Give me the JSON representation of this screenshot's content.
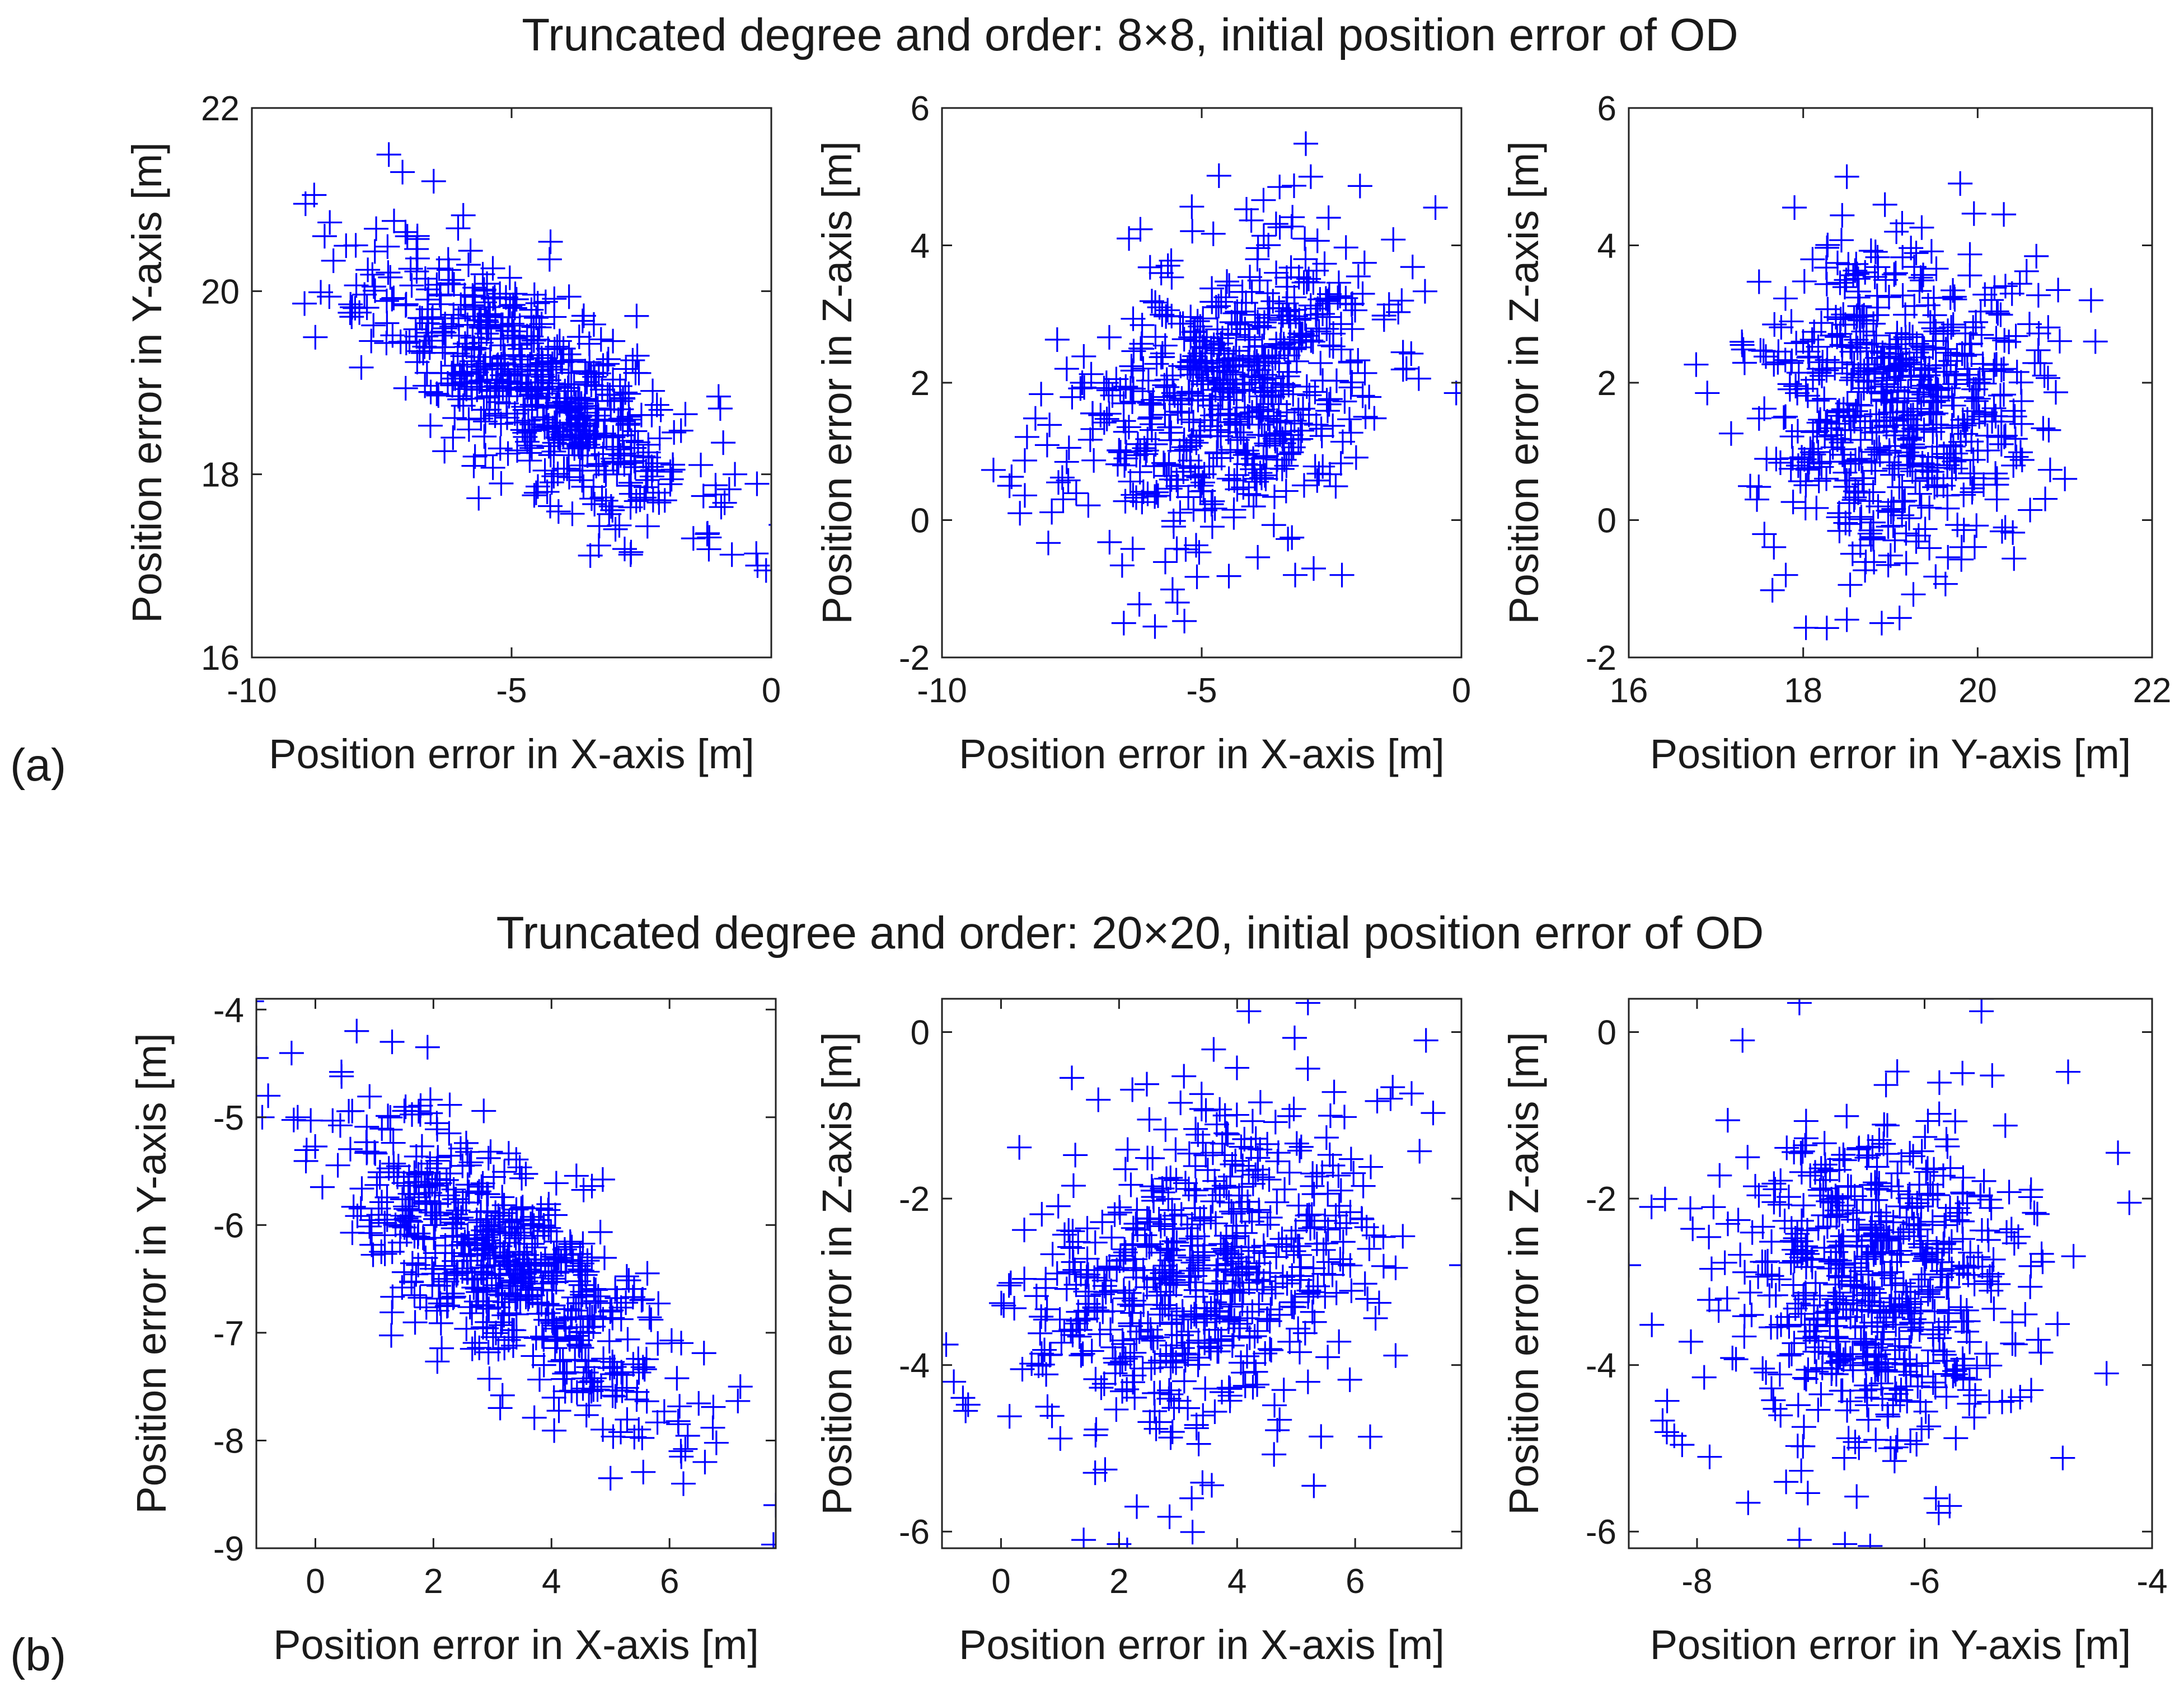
{
  "rows": [
    {
      "title": "Truncated degree and order: 8×8, initial position error of OD",
      "panel_label": "(a)"
    },
    {
      "title": "Truncated degree and order: 20×20, initial position error of OD",
      "panel_label": "(b)"
    }
  ],
  "colors": {
    "marker": "#0000ff",
    "axis": "#222222",
    "text": "#1a1a1a"
  },
  "chart_data": [
    {
      "id": "a1",
      "type": "scatter",
      "marker": "plus",
      "xlabel": "Position error in X-axis [m]",
      "ylabel": "Position error in Y-axis [m]",
      "xlim": [
        -10,
        0
      ],
      "ylim": [
        16,
        22
      ],
      "xticks": [
        -10,
        -5,
        0
      ],
      "yticks": [
        16,
        18,
        20,
        22
      ],
      "cloud": {
        "n": 600,
        "cx": -4.6,
        "cy": 19.0,
        "sx": 1.55,
        "sy": 0.75,
        "rho": -0.7,
        "seed": 11
      },
      "points": [
        [
          -8.8,
          21.05
        ],
        [
          -8.6,
          20.6
        ],
        [
          -8.5,
          20.75
        ],
        [
          -7.1,
          21.3
        ],
        [
          -0.1,
          16.95
        ],
        [
          -0.7,
          18.0
        ],
        [
          -1.5,
          17.3
        ],
        [
          -2.7,
          17.15
        ],
        [
          -3.0,
          17.4
        ],
        [
          -8.0,
          20.5
        ],
        [
          -6.5,
          21.2
        ],
        [
          -5.2,
          17.9
        ]
      ]
    },
    {
      "id": "a2",
      "type": "scatter",
      "marker": "plus",
      "xlabel": "Position error in X-axis [m]",
      "ylabel": "Position error in Z-axis [m]",
      "xlim": [
        -10,
        0
      ],
      "ylim": [
        -2,
        6
      ],
      "xticks": [
        -10,
        -5,
        0
      ],
      "yticks": [
        -2,
        0,
        2,
        4,
        6
      ],
      "cloud": {
        "n": 600,
        "cx": -4.6,
        "cy": 1.8,
        "sx": 1.5,
        "sy": 1.1,
        "rho": 0.3,
        "seed": 23
      },
      "points": [
        [
          -0.5,
          4.55
        ],
        [
          -0.1,
          1.85
        ],
        [
          -6.5,
          -1.5
        ],
        [
          -5.9,
          -1.55
        ],
        [
          -3.5,
          4.85
        ],
        [
          -2.9,
          5.0
        ],
        [
          -8.7,
          0.5
        ],
        [
          -8.5,
          0.1
        ],
        [
          -6.4,
          4.1
        ],
        [
          -7.3,
          2.0
        ],
        [
          -2.3,
          -0.8
        ],
        [
          -3.2,
          -0.8
        ]
      ]
    },
    {
      "id": "a3",
      "type": "scatter",
      "marker": "plus",
      "xlabel": "Position error in Y-axis [m]",
      "ylabel": "Position error in Z-axis [m]",
      "xlim": [
        16,
        22
      ],
      "ylim": [
        -2,
        6
      ],
      "xticks": [
        16,
        18,
        20,
        22
      ],
      "yticks": [
        -2,
        0,
        2,
        4,
        6
      ],
      "cloud": {
        "n": 600,
        "cx": 19.1,
        "cy": 1.8,
        "sx": 0.75,
        "sy": 1.15,
        "rho": 0.0,
        "seed": 37
      },
      "points": [
        [
          16.9,
          1.85
        ],
        [
          18.5,
          5.0
        ],
        [
          19.8,
          4.9
        ],
        [
          17.9,
          4.55
        ],
        [
          18.5,
          -1.45
        ],
        [
          18.9,
          -1.5
        ],
        [
          21.35,
          2.6
        ],
        [
          21.3,
          3.2
        ],
        [
          17.3,
          2.55
        ],
        [
          20.3,
          4.45
        ],
        [
          21.0,
          0.6
        ],
        [
          17.8,
          -0.8
        ]
      ]
    },
    {
      "id": "b1",
      "type": "scatter",
      "marker": "plus",
      "xlabel": "Position error in X-axis [m]",
      "ylabel": "Position error in Y-axis [m]",
      "xlim": [
        -1,
        7.8
      ],
      "ylim": [
        -9,
        -3.9
      ],
      "xticks": [
        0,
        2,
        4,
        6
      ],
      "yticks": [
        -9,
        -8,
        -7,
        -6,
        -5,
        -4
      ],
      "cloud": {
        "n": 600,
        "cx": 3.3,
        "cy": -6.45,
        "sx": 1.45,
        "sy": 0.72,
        "rho": -0.7,
        "seed": 51
      },
      "points": [
        [
          -1.0,
          -4.45
        ],
        [
          -0.8,
          -4.8
        ],
        [
          -0.9,
          -5.0
        ],
        [
          0.7,
          -4.2
        ],
        [
          1.9,
          -4.35
        ],
        [
          7.8,
          -8.6
        ],
        [
          7.2,
          -7.5
        ],
        [
          6.6,
          -8.2
        ],
        [
          6.2,
          -8.15
        ],
        [
          5.0,
          -8.35
        ],
        [
          -0.3,
          -5.0
        ],
        [
          1.3,
          -4.3
        ]
      ]
    },
    {
      "id": "b2",
      "type": "scatter",
      "marker": "plus",
      "xlabel": "Position error in X-axis [m]",
      "ylabel": "Position error in Z-axis [m]",
      "xlim": [
        -1,
        7.8
      ],
      "ylim": [
        -6.2,
        0.4
      ],
      "xticks": [
        0,
        2,
        4,
        6
      ],
      "yticks": [
        -6,
        -4,
        -2,
        0
      ],
      "cloud": {
        "n": 600,
        "cx": 3.3,
        "cy": -3.0,
        "sx": 1.45,
        "sy": 1.0,
        "rho": 0.3,
        "seed": 67
      },
      "points": [
        [
          -0.8,
          -4.2
        ],
        [
          -0.6,
          -4.55
        ],
        [
          1.4,
          -6.1
        ],
        [
          2.0,
          -6.15
        ],
        [
          2.3,
          -5.7
        ],
        [
          7.8,
          -2.8
        ],
        [
          7.2,
          -0.1
        ],
        [
          5.2,
          0.35
        ],
        [
          4.2,
          0.25
        ],
        [
          1.2,
          -0.55
        ],
        [
          6.6,
          -0.8
        ],
        [
          5.3,
          -5.45
        ]
      ]
    },
    {
      "id": "b3",
      "type": "scatter",
      "marker": "plus",
      "xlabel": "Position error in Y-axis [m]",
      "ylabel": "Position error in Z-axis [m]",
      "xlim": [
        -8.6,
        -4
      ],
      "ylim": [
        -6.2,
        0.4
      ],
      "xticks": [
        -8,
        -6,
        -4
      ],
      "yticks": [
        -6,
        -4,
        -2,
        0
      ],
      "cloud": {
        "n": 600,
        "cx": -6.45,
        "cy": -3.0,
        "sx": 0.7,
        "sy": 1.0,
        "rho": 0.0,
        "seed": 83
      },
      "points": [
        [
          -8.6,
          -2.8
        ],
        [
          -7.1,
          0.35
        ],
        [
          -5.5,
          0.25
        ],
        [
          -7.1,
          -6.1
        ],
        [
          -6.7,
          -6.15
        ],
        [
          -4.2,
          -2.05
        ],
        [
          -4.3,
          -1.45
        ],
        [
          -4.4,
          -4.1
        ],
        [
          -8.2,
          -4.85
        ],
        [
          -7.6,
          -0.1
        ],
        [
          -5.9,
          -5.6
        ],
        [
          -8.4,
          -2.1
        ]
      ]
    }
  ]
}
